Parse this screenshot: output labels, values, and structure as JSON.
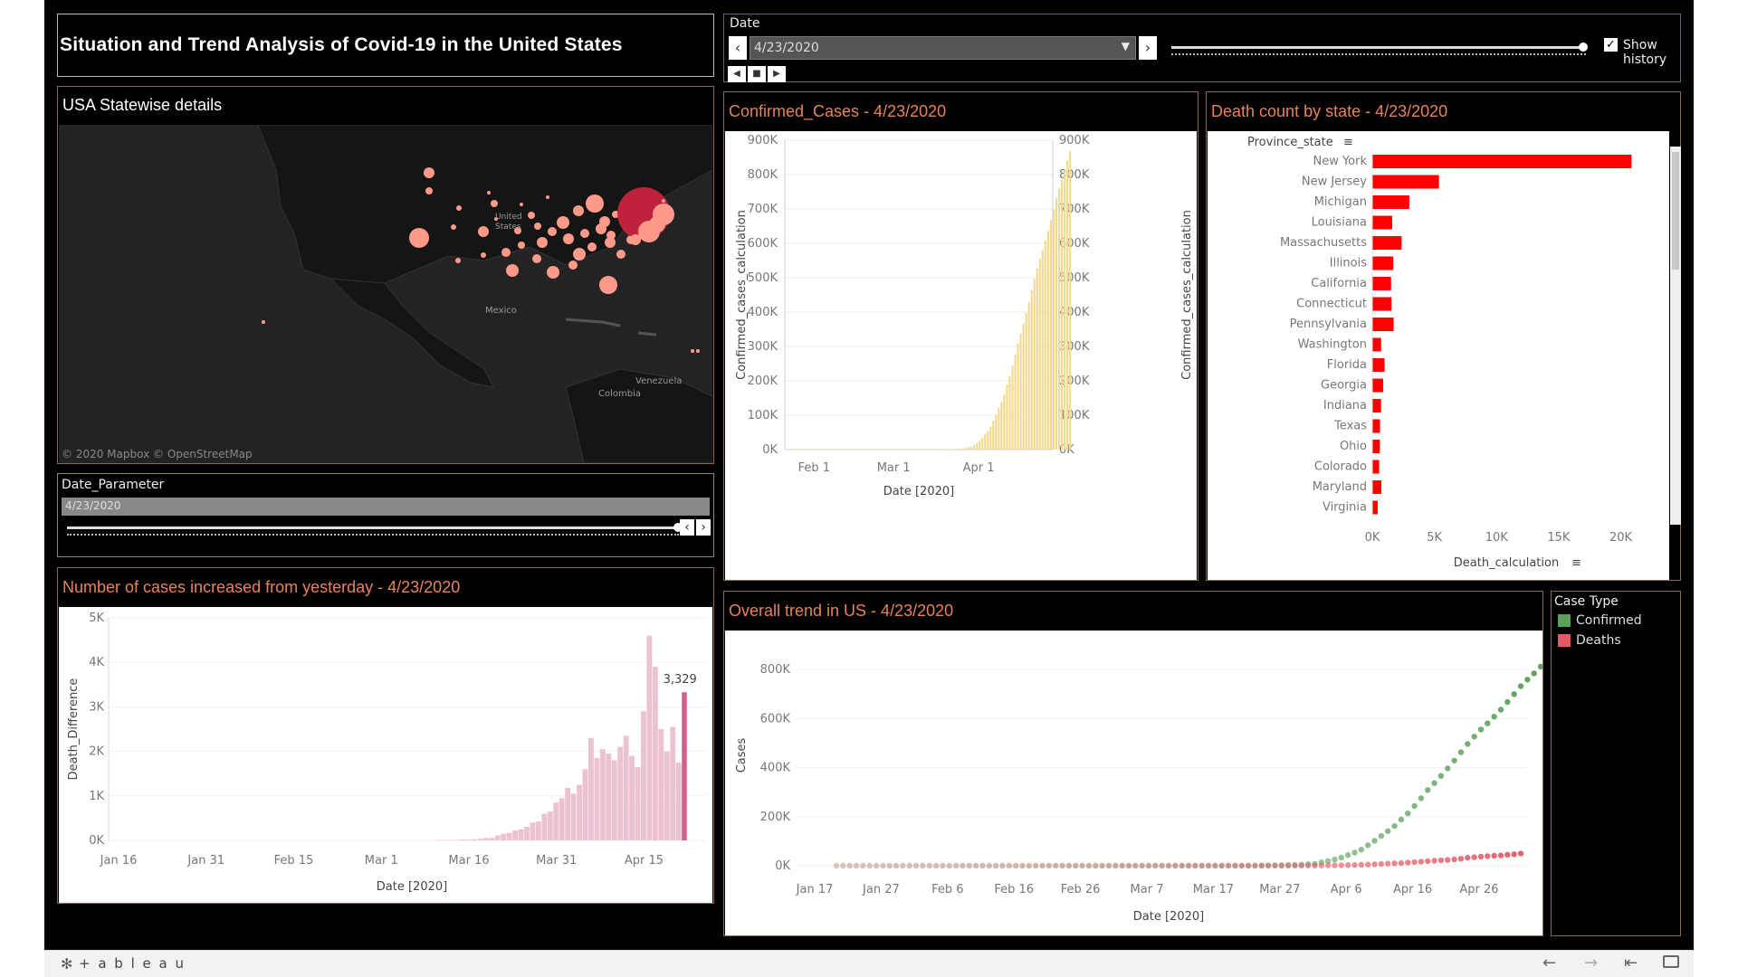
{
  "title": "Situation and Trend Analysis of Covid-19 in the United States",
  "date_filter": {
    "label": "Date",
    "value": "4/23/2020",
    "show_history": "Show history"
  },
  "map": {
    "title": "USA Statewise details",
    "labels": {
      "us": "United States",
      "mexico": "Mexico",
      "venezuela": "Venezuela",
      "colombia": "Colombia"
    },
    "attribution": "© 2020 Mapbox  © OpenStreetMap"
  },
  "date_param": {
    "label": "Date_Parameter",
    "value": "4/23/2020"
  },
  "confirmed_chart": {
    "title": "Confirmed_Cases - 4/23/2020",
    "ylabel": "Confirmed_cases_calculation",
    "xlabel": "Date [2020]",
    "yticks": [
      "900K",
      "800K",
      "700K",
      "600K",
      "500K",
      "400K",
      "300K",
      "200K",
      "100K",
      "0K"
    ],
    "xticks": [
      "Feb 1",
      "Mar 1",
      "Apr 1"
    ]
  },
  "death_chart": {
    "title": "Death count by state - 4/23/2020",
    "header": "Province_state",
    "xlabel": "Death_calculation",
    "xticks": [
      "0K",
      "5K",
      "10K",
      "15K",
      "20K"
    ]
  },
  "increase_chart": {
    "title": "Number of cases increased from yesterday - 4/23/2020",
    "ylabel": "Death_Difference",
    "xlabel": "Date [2020]",
    "yticks": [
      "5K",
      "4K",
      "3K",
      "2K",
      "1K",
      "0K"
    ],
    "xticks": [
      "Jan 16",
      "Jan 31",
      "Feb 15",
      "Mar 1",
      "Mar 16",
      "Mar 31",
      "Apr 15"
    ],
    "annotation": "3,329"
  },
  "trend_chart": {
    "title": "Overall trend in US - 4/23/2020",
    "ylabel": "Cases",
    "xlabel": "Date [2020]",
    "yticks": [
      "800K",
      "600K",
      "400K",
      "200K",
      "0K"
    ],
    "xticks": [
      "Jan 17",
      "Jan 27",
      "Feb 6",
      "Feb 16",
      "Feb 26",
      "Mar 7",
      "Mar 17",
      "Mar 27",
      "Apr 6",
      "Apr 16",
      "Apr 26"
    ]
  },
  "legend": {
    "title": "Case Type",
    "items": [
      {
        "label": "Confirmed",
        "color": "#5aa05a"
      },
      {
        "label": "Deaths",
        "color": "#e05a66"
      }
    ]
  },
  "footer": {
    "brand": "+ a b l e a u"
  },
  "chart_data": [
    {
      "type": "bar",
      "title": "Confirmed_Cases - 4/23/2020",
      "ylabel": "Confirmed_cases_calculation",
      "xlabel": "Date [2020]",
      "ylim": [
        0,
        900000
      ],
      "color": "#f3d98d",
      "x_start": "2020-01-22",
      "values": [
        1,
        1,
        2,
        2,
        5,
        5,
        5,
        5,
        5,
        7,
        8,
        8,
        11,
        11,
        11,
        11,
        11,
        12,
        12,
        12,
        12,
        12,
        13,
        13,
        14,
        14,
        14,
        14,
        14,
        14,
        14,
        14,
        15,
        15,
        15,
        15,
        15,
        15,
        15,
        15,
        15,
        35,
        35,
        35,
        53,
        57,
        60,
        60,
        62,
        70,
        76,
        101,
        122,
        153,
        221,
        278,
        417,
        537,
        605,
        959,
        1281,
        1663,
        2179,
        2727,
        3499,
        4632,
        6421,
        7786,
        13680,
        19101,
        25493,
        33276,
        43847,
        53740,
        65778,
        83836,
        101657,
        121465,
        140909,
        161831,
        188172,
        213242,
        243622,
        275367,
        308650,
        336802,
        366317,
        397121,
        428654,
        462780,
        496535,
        526396,
        555313,
        580619,
        607670,
        636350,
        667592,
        699706,
        732197,
        758809,
        784326,
        811865,
        840351,
        869170
      ]
    },
    {
      "type": "bar",
      "title": "Death count by state - 4/23/2020",
      "xlabel": "Death_calculation",
      "xlim": [
        0,
        22000
      ],
      "color": "#ff0000",
      "categories": [
        "New York",
        "New Jersey",
        "Michigan",
        "Louisiana",
        "Massachusetts",
        "Illinois",
        "California",
        "Connecticut",
        "Pennsylvania",
        "Washington",
        "Florida",
        "Georgia",
        "Indiana",
        "Texas",
        "Ohio",
        "Colorado",
        "Maryland",
        "Virginia"
      ],
      "values": [
        20861,
        5368,
        2977,
        1599,
        2360,
        1688,
        1509,
        1544,
        1716,
        711,
        987,
        872,
        706,
        620,
        610,
        552,
        725,
        438
      ]
    },
    {
      "type": "bar",
      "title": "Number of cases increased from yesterday - 4/23/2020",
      "ylabel": "Death_Difference",
      "xlabel": "Date [2020]",
      "ylim": [
        0,
        5000
      ],
      "color": "#ecc2d3",
      "highlight_color": "#d0608a",
      "x_start": "2020-03-10",
      "values": [
        8,
        12,
        11,
        13,
        19,
        22,
        26,
        40,
        55,
        56,
        110,
        147,
        170,
        220,
        250,
        305,
        400,
        425,
        600,
        650,
        850,
        950,
        1180,
        1050,
        1250,
        1600,
        2300,
        1850,
        2050,
        1950,
        1800,
        2100,
        2350,
        1900,
        1650,
        2900,
        4600,
        3900,
        2500,
        2000,
        2550,
        1750,
        3329
      ]
    },
    {
      "type": "scatter",
      "title": "Overall trend in US - 4/23/2020",
      "ylabel": "Cases",
      "xlabel": "Date [2020]",
      "ylim": [
        0,
        900000
      ],
      "x_start": "2020-01-17",
      "series": [
        {
          "name": "Confirmed",
          "color": "#5aa05a",
          "values": [
            0,
            0,
            0,
            0,
            0,
            1,
            1,
            2,
            2,
            5,
            5,
            5,
            5,
            5,
            7,
            8,
            8,
            11,
            11,
            11,
            11,
            11,
            12,
            12,
            12,
            12,
            12,
            13,
            13,
            14,
            14,
            14,
            14,
            14,
            14,
            14,
            14,
            15,
            15,
            15,
            15,
            15,
            15,
            15,
            15,
            15,
            35,
            35,
            35,
            53,
            57,
            60,
            60,
            62,
            70,
            76,
            101,
            122,
            153,
            221,
            278,
            417,
            537,
            605,
            959,
            1281,
            1663,
            2179,
            2727,
            3499,
            4632,
            6421,
            7786,
            13680,
            19101,
            25493,
            33276,
            43847,
            53740,
            65778,
            83836,
            101657,
            121465,
            140909,
            161831,
            188172,
            213242,
            243622,
            275367,
            308650,
            336802,
            366317,
            397121,
            428654,
            462780,
            496535,
            526396,
            555313,
            580619,
            607670,
            636350,
            667592,
            699706,
            732197,
            758809,
            784326,
            811865,
            840351,
            869170
          ]
        },
        {
          "name": "Deaths",
          "color": "#e05a66",
          "values": [
            0,
            0,
            0,
            0,
            0,
            0,
            0,
            0,
            0,
            0,
            0,
            0,
            0,
            0,
            0,
            0,
            0,
            0,
            0,
            0,
            0,
            0,
            0,
            0,
            0,
            0,
            0,
            0,
            0,
            0,
            0,
            0,
            0,
            0,
            0,
            0,
            0,
            0,
            0,
            0,
            0,
            0,
            0,
            0,
            0,
            0,
            0,
            0,
            0,
            1,
            6,
            7,
            11,
            12,
            14,
            17,
            21,
            22,
            28,
            36,
            40,
            47,
            54,
            63,
            85,
            108,
            118,
            200,
            244,
            307,
            427,
            552,
            706,
            942,
            1209,
            1581,
            2026,
            2467,
            2978,
            3873,
            4757,
            5926,
            7087,
            8407,
            9619,
            10783,
            12722,
            14695,
            16478,
            18586,
            20463,
            22020,
            23529,
            25832,
            28326,
            32916,
            34722,
            37154,
            39090,
            40661,
            42094,
            44845,
            46785,
            49845
          ]
        }
      ]
    }
  ]
}
